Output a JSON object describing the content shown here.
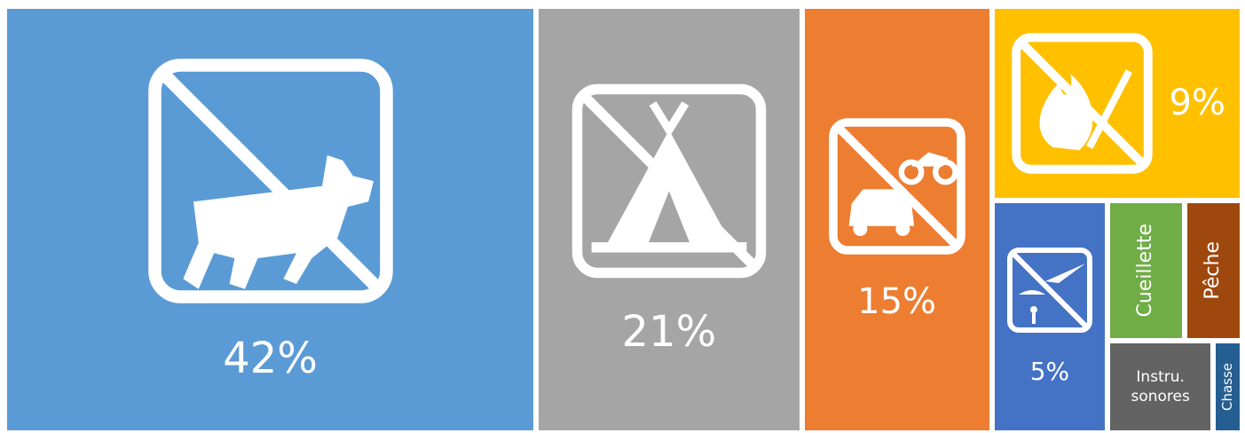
{
  "chart_data": {
    "type": "treemap",
    "categories": [
      null,
      null,
      null,
      null,
      null,
      "Cueillette",
      "Pêche",
      "Instru. sonores",
      "Chasse"
    ],
    "values": [
      42,
      21,
      15,
      9,
      5,
      2,
      1.5,
      1.8,
      0.5
    ],
    "value_labels": [
      "42%",
      "21%",
      "15%",
      "9%",
      "5%",
      null,
      null,
      null,
      null
    ],
    "colors": [
      "#5b9bd5",
      "#a5a5a5",
      "#ed7d31",
      "#ffc000",
      "#4472c4",
      "#70ad47",
      "#9e480e",
      "#636363",
      "#255e91"
    ]
  }
}
